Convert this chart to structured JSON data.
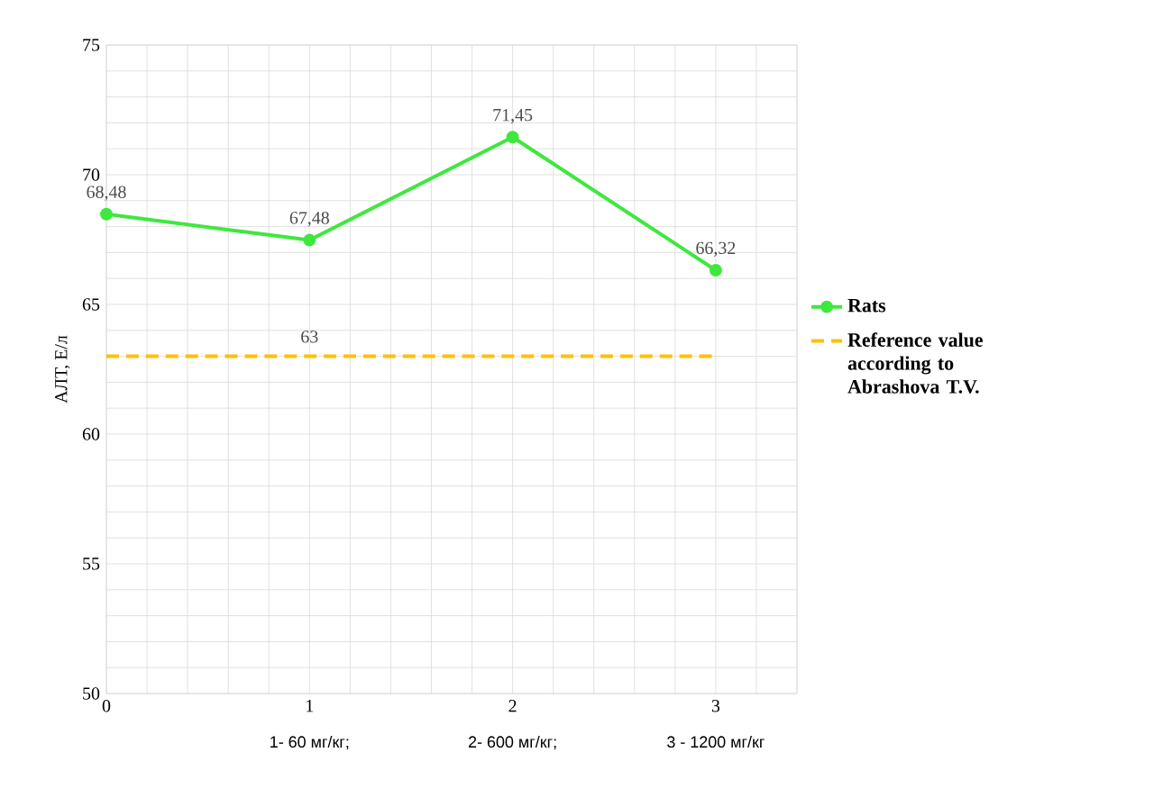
{
  "chart_data": {
    "type": "line",
    "ylabel": "АЛТ, Е/л",
    "x": [
      0,
      1,
      2,
      3
    ],
    "series": [
      {
        "name": "Rats",
        "color": "#3ee83e",
        "marker": "circle",
        "line_style": "solid",
        "values": [
          68.48,
          67.48,
          71.45,
          66.32
        ],
        "value_labels": [
          "68,48",
          "67,48",
          "71,45",
          "66,32"
        ]
      },
      {
        "name": "Reference value according to Abrashova T.V.",
        "color": "#ffc000",
        "marker": "none",
        "line_style": "dashed",
        "values": [
          63,
          63,
          63,
          63
        ],
        "value_labels": [
          null,
          "63",
          null,
          null
        ]
      }
    ],
    "xlim": [
      0,
      3.4
    ],
    "ylim": [
      50,
      75
    ],
    "xticks": [
      0,
      {
        "value": 0.2,
        "label": null
      },
      {
        "value": 0.4,
        "label": null
      },
      {
        "value": 0.6,
        "label": null
      },
      {
        "value": 0.8,
        "label": null
      },
      1,
      {
        "value": 1.2,
        "label": null
      },
      {
        "value": 1.4,
        "label": null
      },
      {
        "value": 1.6,
        "label": null
      },
      {
        "value": 1.8,
        "label": null
      },
      2,
      {
        "value": 2.2,
        "label": null
      },
      {
        "value": 2.4,
        "label": null
      },
      {
        "value": 2.6,
        "label": null
      },
      {
        "value": 2.8,
        "label": null
      },
      3,
      {
        "value": 3.2,
        "label": null
      },
      {
        "value": 3.4,
        "label": null
      }
    ],
    "yticks": [
      50,
      {
        "value": 51,
        "label": null
      },
      {
        "value": 52,
        "label": null
      },
      {
        "value": 53,
        "label": null
      },
      {
        "value": 54,
        "label": null
      },
      55,
      {
        "value": 56,
        "label": null
      },
      {
        "value": 57,
        "label": null
      },
      {
        "value": 58,
        "label": null
      },
      {
        "value": 59,
        "label": null
      },
      60,
      {
        "value": 61,
        "label": null
      },
      {
        "value": 62,
        "label": null
      },
      {
        "value": 63,
        "label": null
      },
      {
        "value": 64,
        "label": null
      },
      65,
      {
        "value": 66,
        "label": null
      },
      {
        "value": 67,
        "label": null
      },
      {
        "value": 68,
        "label": null
      },
      {
        "value": 69,
        "label": null
      },
      70,
      {
        "value": 71,
        "label": null
      },
      {
        "value": 72,
        "label": null
      },
      {
        "value": 73,
        "label": null
      },
      {
        "value": 74,
        "label": null
      },
      75
    ],
    "grid": true,
    "legend": "right",
    "annotations": [
      "1- 60 мг/кг;",
      "2- 600 мг/кг;",
      "3 - 1200 мг/кг"
    ]
  }
}
